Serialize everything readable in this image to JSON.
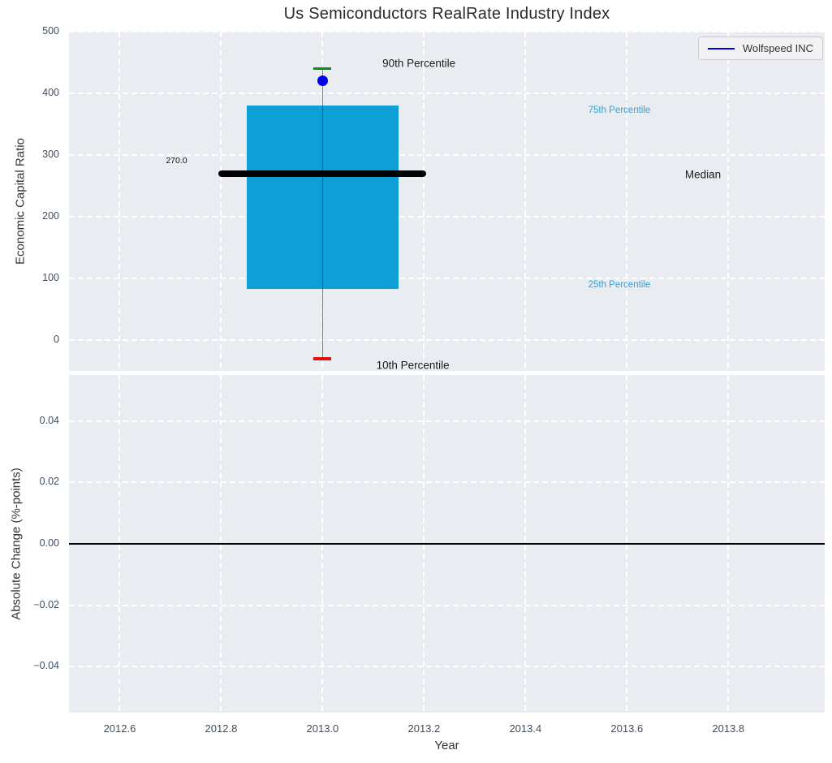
{
  "title": "Us Semiconductors RealRate Industry Index",
  "legend": {
    "label": "Wolfspeed INC",
    "line_color": "#0000e8",
    "position": "upper right"
  },
  "colors": {
    "axes_background": "#e9edf1",
    "grid": "#ffffff",
    "tick_label": "#3d4e63",
    "box_fill": "#0d9fd6",
    "median_line": "#000000",
    "p90_cap": "#0a8f0a",
    "p10_cap": "#e01010",
    "whisker": "#808080",
    "company_point": "#0000f0",
    "percentile_label_blue": "#2aa3da",
    "annotation_black": "#1a1a1a"
  },
  "chart_data": [
    {
      "type": "boxplot",
      "title": "Us Semiconductors RealRate Industry Index",
      "ylabel": "Economic Capital Ratio",
      "ylim": [
        -50,
        500
      ],
      "yticks": [
        0,
        100,
        200,
        300,
        400,
        500
      ],
      "ytick_labels": [
        "0",
        "100",
        "200",
        "300",
        "400",
        "500"
      ],
      "xlim": [
        2012.5,
        2013.99
      ],
      "xticks": [
        2012.6,
        2012.8,
        2013.0,
        2013.2,
        2013.4,
        2013.6,
        2013.8
      ],
      "grid": true,
      "box": {
        "x": 2013.0,
        "p10": -30,
        "q1": 83,
        "median": 270,
        "q3": 380,
        "p90": 440,
        "box_halfwidth": 0.15,
        "median_halfwidth": 0.205,
        "cap_halfwidth": 0.0175,
        "median_label": "270.0"
      },
      "company_point": {
        "name": "Wolfspeed INC",
        "x": 2013.0,
        "y": 420
      },
      "annotations": [
        {
          "text": "90th Percentile",
          "x": 2013.19,
          "y": 449,
          "color": "#1a1a1a",
          "size": 13.5
        },
        {
          "text": "75th Percentile",
          "x": 2013.585,
          "y": 372,
          "color": "#2aa3da",
          "size": 11.5
        },
        {
          "text": "Median",
          "x": 2013.75,
          "y": 269,
          "color": "#1a1a1a",
          "size": 13.5
        },
        {
          "text": "25th Percentile",
          "x": 2013.585,
          "y": 90,
          "color": "#2aa3da",
          "size": 11.5
        },
        {
          "text": "10th Percentile",
          "x": 2013.178,
          "y": -41,
          "color": "#1a1a1a",
          "size": 13.5
        },
        {
          "text": "270.0",
          "x": 2012.712,
          "y": 291,
          "color": "#111111",
          "size": 10.5
        }
      ]
    },
    {
      "type": "line",
      "ylabel": "Absolute Change (%-points)",
      "xlabel": "Year",
      "ylim": [
        -0.055,
        0.055
      ],
      "yticks": [
        -0.04,
        -0.02,
        0.0,
        0.02,
        0.04
      ],
      "ytick_labels": [
        "−0.04",
        "−0.02",
        "0.00",
        "0.02",
        "0.04"
      ],
      "xlim": [
        2012.5,
        2013.99
      ],
      "xticks": [
        2012.6,
        2012.8,
        2013.0,
        2013.2,
        2013.4,
        2013.6,
        2013.8
      ],
      "xtick_labels": [
        "2012.6",
        "2012.8",
        "2013.0",
        "2013.2",
        "2013.4",
        "2013.6",
        "2013.8"
      ],
      "grid": true,
      "zero_line": 0.0,
      "series": []
    }
  ]
}
